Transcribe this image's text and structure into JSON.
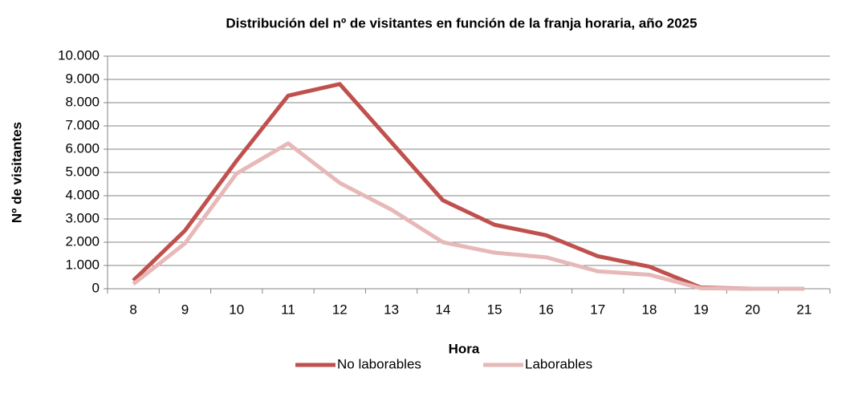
{
  "chart_data": {
    "type": "line",
    "title": "Distribución del nº de visitantes en función de la franja horaria, año 2025",
    "x_label": "Hora",
    "y_label": "Nº de visitantes",
    "categories": [
      "8",
      "9",
      "10",
      "11",
      "12",
      "13",
      "14",
      "15",
      "16",
      "17",
      "18",
      "19",
      "20",
      "21"
    ],
    "series": [
      {
        "name": "No laborables",
        "color": "#c0504d",
        "values": [
          350,
          2500,
          5500,
          8300,
          8800,
          6300,
          3800,
          2750,
          2300,
          1400,
          950,
          50,
          0,
          0
        ]
      },
      {
        "name": "Laborables",
        "color": "#e6b9b8",
        "values": [
          200,
          1950,
          4950,
          6250,
          4550,
          3400,
          2000,
          1550,
          1350,
          750,
          600,
          20,
          0,
          0
        ]
      }
    ],
    "ylim": [
      0,
      10000
    ],
    "yticks": [
      0,
      {
        "value": 1000,
        "label": "1.000"
      },
      {
        "value": 2000,
        "label": "2.000"
      },
      {
        "value": 3000,
        "label": "3.000"
      },
      {
        "value": 4000,
        "label": "4.000"
      },
      {
        "value": 5000,
        "label": "5.000"
      },
      {
        "value": 6000,
        "label": "6.000"
      },
      {
        "value": 7000,
        "label": "7.000"
      },
      {
        "value": 8000,
        "label": "8.000"
      },
      {
        "value": 9000,
        "label": "9.000"
      },
      {
        "value": 10000,
        "label": "10.000"
      }
    ],
    "grid": true,
    "legend": "bottom"
  }
}
